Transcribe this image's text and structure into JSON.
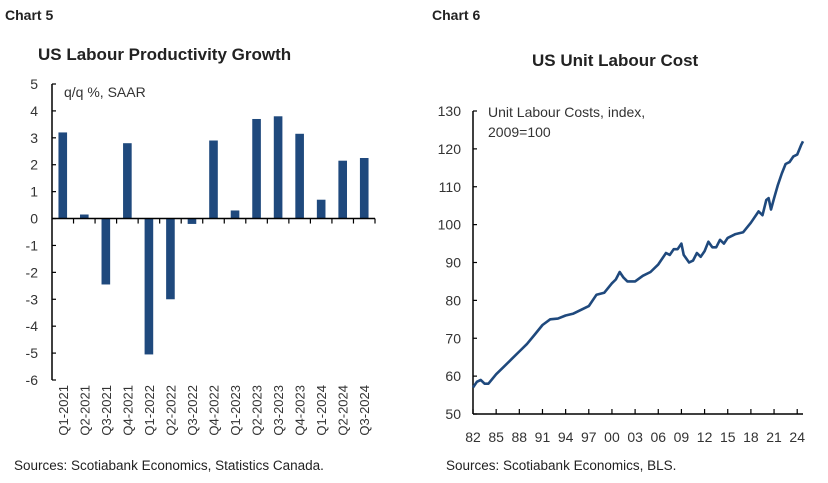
{
  "charts": [
    {
      "number": "Chart 5",
      "title": "US Labour Productivity Growth",
      "source": "Sources: Scotiabank Economics, Statistics Canada."
    },
    {
      "number": "Chart 6",
      "title": "US Unit Labour Cost",
      "source": "Sources: Scotiabank Economics, BLS."
    }
  ],
  "chart_data": [
    {
      "type": "bar",
      "title": "US Labour Productivity Growth",
      "ylabel": "q/q %, SAAR",
      "categories": [
        "Q1-2021",
        "Q2-2021",
        "Q3-2021",
        "Q4-2021",
        "Q1-2022",
        "Q2-2022",
        "Q3-2022",
        "Q4-2022",
        "Q1-2023",
        "Q2-2023",
        "Q3-2023",
        "Q4-2023",
        "Q1-2024",
        "Q2-2024",
        "Q3-2024"
      ],
      "values": [
        3.2,
        0.15,
        -2.45,
        2.8,
        -5.05,
        -3.0,
        -0.2,
        2.9,
        0.3,
        3.7,
        3.8,
        3.15,
        0.7,
        2.15,
        2.25
      ],
      "ylim": [
        -6,
        5
      ],
      "yticks": [
        "5",
        "4",
        "3",
        "2",
        "1",
        "0",
        "-1",
        "-2",
        "-3",
        "-4",
        "-5",
        "-6"
      ],
      "grid": false,
      "color": "#1f497d"
    },
    {
      "type": "line",
      "title": "US Unit Labour Cost",
      "ylabel": "Unit Labour Costs, index, 2009=100",
      "ylabel_lines": [
        "Unit Labour Costs, index,",
        "2009=100"
      ],
      "ylim": [
        50,
        130
      ],
      "yticks": [
        "130",
        "120",
        "110",
        "100",
        "90",
        "80",
        "70",
        "60",
        "50"
      ],
      "xticks": [
        "82",
        "85",
        "88",
        "91",
        "94",
        "97",
        "00",
        "03",
        "06",
        "09",
        "12",
        "15",
        "18",
        "21",
        "24"
      ],
      "xlim": [
        1982,
        2024.75
      ],
      "grid": false,
      "color": "#1f497d",
      "x": [
        1982,
        1982.5,
        1983,
        1983.5,
        1984,
        1985,
        1986,
        1987,
        1988,
        1989,
        1990,
        1991,
        1992,
        1993,
        1994,
        1995,
        1996,
        1997,
        1998,
        1999,
        2000,
        2000.5,
        2001,
        2001.5,
        2002,
        2003,
        2004,
        2005,
        2006,
        2007,
        2007.5,
        2008,
        2008.5,
        2009,
        2009.3,
        2010,
        2010.5,
        2011,
        2011.5,
        2012,
        2012.5,
        2013,
        2013.5,
        2014,
        2014.5,
        2015,
        2016,
        2017,
        2018,
        2019,
        2019.5,
        2020,
        2020.3,
        2020.6,
        2021,
        2021.5,
        2022,
        2022.5,
        2023,
        2023.5,
        2024,
        2024.5,
        2024.75
      ],
      "y": [
        57,
        58.5,
        59,
        58,
        58,
        60.5,
        62.5,
        64.5,
        66.5,
        68.5,
        71,
        73.5,
        75,
        75.2,
        76,
        76.5,
        77.5,
        78.5,
        81.5,
        82,
        84.5,
        85.5,
        87.5,
        86,
        85,
        85,
        86.5,
        87.5,
        89.5,
        92.5,
        92,
        93.5,
        93.5,
        95,
        92,
        90,
        90.5,
        92.5,
        91.5,
        93,
        95.5,
        94,
        94,
        96,
        95,
        96.5,
        97.5,
        98,
        100.5,
        103.5,
        102.5,
        106.5,
        107,
        104,
        107,
        110.5,
        113.5,
        116,
        116.5,
        118,
        118.5,
        121,
        122
      ]
    }
  ]
}
